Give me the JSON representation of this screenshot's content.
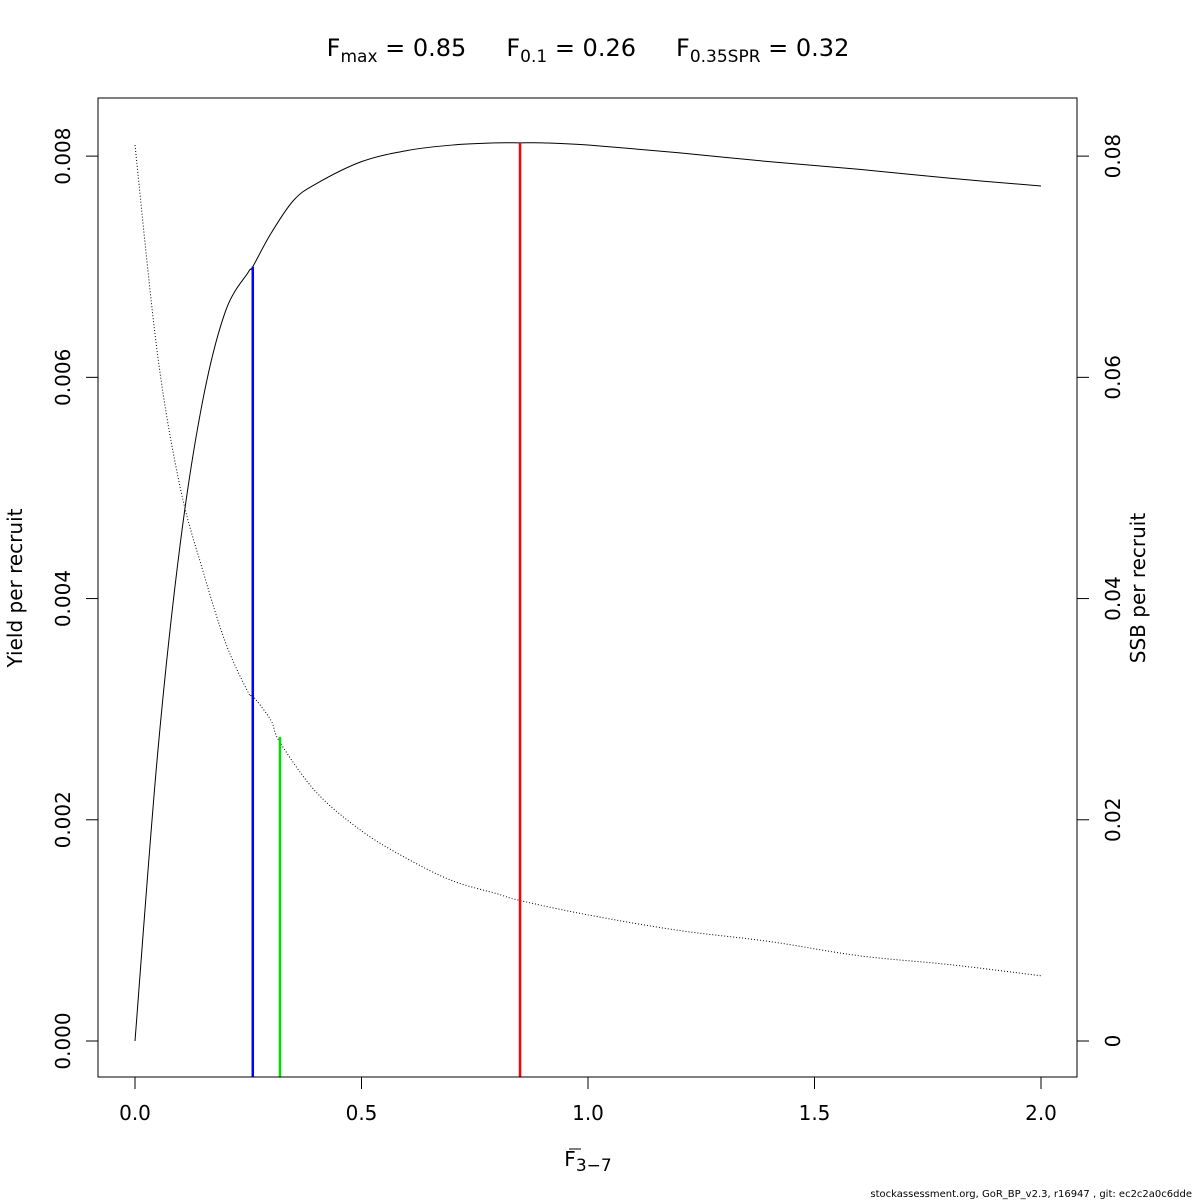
{
  "chart_data": {
    "type": "line",
    "title_parts": [
      {
        "base": "F",
        "sub": "max",
        "rest": " = 0.85"
      },
      {
        "base": "F",
        "sub": "0.1",
        "rest": " = 0.26"
      },
      {
        "base": "F",
        "sub": "0.35SPR",
        "rest": " = 0.32"
      }
    ],
    "xlabel": {
      "base": "F",
      "sub": "3−7"
    },
    "ylabel_left": "Yield per recruit",
    "ylabel_right": "SSB per recruit",
    "xlim": [
      0,
      2
    ],
    "ylim_left": [
      0,
      0.0082
    ],
    "ylim_right": [
      0,
      0.082
    ],
    "x_ticks": [
      0.0,
      0.5,
      1.0,
      1.5,
      2.0
    ],
    "x_tick_labels": [
      "0.0",
      "0.5",
      "1.0",
      "1.5",
      "2.0"
    ],
    "y_left_ticks": [
      0,
      0.002,
      0.004,
      0.006,
      0.008
    ],
    "y_left_tick_labels": [
      "0.000",
      "0.002",
      "0.004",
      "0.006",
      "0.008"
    ],
    "y_right_ticks": [
      0,
      0.02,
      0.04,
      0.06,
      0.08
    ],
    "y_right_tick_labels": [
      "0",
      "0.02",
      "0.04",
      "0.06",
      "0.08"
    ],
    "series": [
      {
        "axis": "left",
        "style": "solid",
        "x": [
          0,
          0.05,
          0.1,
          0.15,
          0.2,
          0.25,
          0.26,
          0.3,
          0.35,
          0.4,
          0.5,
          0.6,
          0.7,
          0.8,
          0.85,
          0.9,
          1.0,
          1.2,
          1.4,
          1.6,
          1.8,
          2.0
        ],
        "y": [
          0,
          0.0026,
          0.0045,
          0.0058,
          0.0066,
          0.00695,
          0.007,
          0.0073,
          0.0076,
          0.00775,
          0.00795,
          0.00805,
          0.0081,
          0.00812,
          0.00812,
          0.00812,
          0.0081,
          0.00803,
          0.00795,
          0.00788,
          0.0078,
          0.00773
        ]
      },
      {
        "axis": "right",
        "style": "dotted",
        "x": [
          0,
          0.05,
          0.1,
          0.15,
          0.2,
          0.25,
          0.26,
          0.3,
          0.32,
          0.4,
          0.5,
          0.6,
          0.7,
          0.8,
          0.85,
          1.0,
          1.2,
          1.4,
          1.6,
          1.8,
          2.0
        ],
        "y": [
          0.081,
          0.062,
          0.05,
          0.0425,
          0.036,
          0.0315,
          0.0312,
          0.029,
          0.027,
          0.0225,
          0.019,
          0.0165,
          0.0145,
          0.0133,
          0.0127,
          0.0114,
          0.01,
          0.009,
          0.0077,
          0.0069,
          0.0059
        ]
      }
    ],
    "reference_lines": [
      {
        "name": "F0.1",
        "x": 0.26,
        "y_top": 0.007,
        "axis": "left",
        "color": "#0000ff"
      },
      {
        "name": "F0.35SPR",
        "x": 0.32,
        "y_top": 0.0275,
        "axis": "right",
        "color": "#00dd00"
      },
      {
        "name": "Fmax",
        "x": 0.85,
        "y_top": 0.00812,
        "axis": "left",
        "color": "#ff0000"
      }
    ]
  },
  "footer": "stockassessment.org, GoR_BP_v2.3, r16947 , git: ec2c2a0c6dde"
}
